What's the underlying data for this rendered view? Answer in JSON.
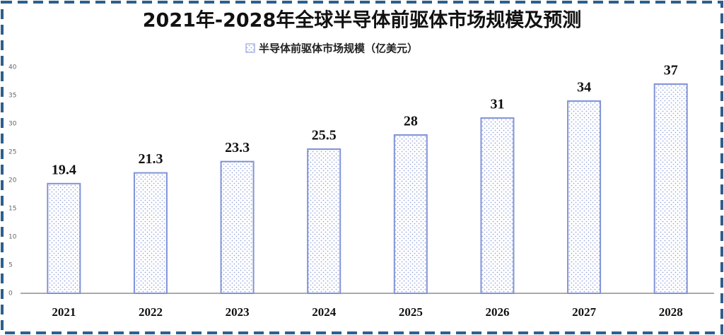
{
  "chart_data": {
    "type": "bar",
    "title": "2021年-2028年全球半导体前驱体市场规模及预测",
    "categories": [
      "2021",
      "2022",
      "2023",
      "2024",
      "2025",
      "2026",
      "2027",
      "2028"
    ],
    "series": [
      {
        "name": "半导体前驱体市场规模（亿美元）",
        "color": "#8093d8",
        "values": [
          19.4,
          21.3,
          23.3,
          25.5,
          28,
          31,
          34,
          37
        ]
      }
    ],
    "ylim": [
      0,
      40
    ],
    "yticks": [
      0,
      5,
      10,
      15,
      20,
      25,
      30,
      35,
      40
    ],
    "grid": false
  }
}
